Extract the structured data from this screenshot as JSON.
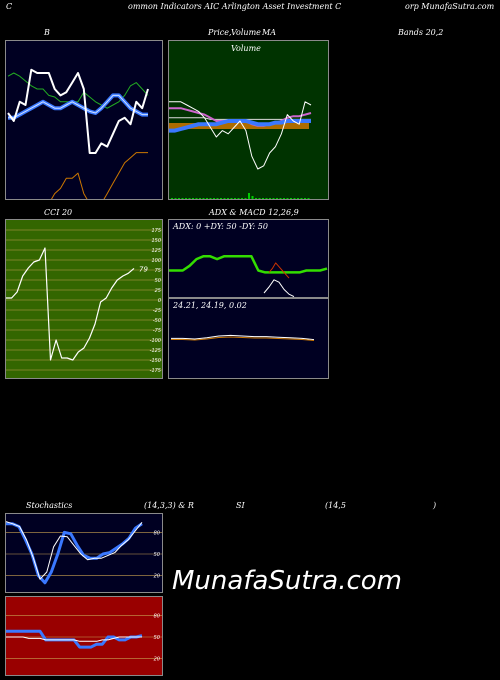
{
  "header": {
    "left_c": "C",
    "middle": "ommon  Indicators AIC Arlington  Asset Investment C",
    "right": "orp MunafaSutra.com"
  },
  "panels": {
    "bollinger": {
      "title": "B",
      "title_right": "Bands 20,2"
    },
    "price": {
      "title_a": "Price,",
      "title_b": "Volume",
      "title_c": "MA",
      "overlay": "Volume"
    },
    "cci": {
      "title": "CCI 20",
      "last_label": "79",
      "ticks": [
        "175",
        "150",
        "125",
        "100",
        "75",
        "50",
        "25",
        "0",
        "-25",
        "-50",
        "-75",
        "-100",
        "-125",
        "-150",
        "-175"
      ]
    },
    "adx": {
      "title": "ADX  & MACD 12,26,9",
      "line1": "ADX: 0   +DY: 50   -DY: 50",
      "macd_line": "24.21,  24.19,  0.02"
    },
    "stoch": {
      "title_a": "Stochastics",
      "title_b": "(14,3,3) & R",
      "title_c": "SI",
      "title_d": "(14,5",
      "title_e": ")",
      "ticks": [
        "80",
        "50",
        "20"
      ],
      "rsi_ticks": [
        "80",
        "50",
        "20"
      ]
    }
  },
  "watermark": "MunafaSutra.com",
  "colors": {
    "bollinger_bg": "#000022",
    "price_bg": "#003300",
    "cci_bg": "#336600",
    "adx_bg": "#000022",
    "stoch_bg": "#000022",
    "rsi_bg": "#990000"
  },
  "chart_data": [
    {
      "type": "line",
      "title": "Bands 20,2",
      "series": [
        {
          "values": [
            0.78,
            0.8,
            0.78,
            0.75,
            0.72,
            0.7,
            0.7,
            0.66,
            0.65,
            0.62,
            0.62,
            0.62,
            0.62,
            0.68,
            0.65,
            0.62,
            0.6,
            0.58,
            0.6,
            0.62,
            0.66,
            0.72,
            0.74,
            0.7,
            0.66
          ]
        },
        {
          "values": [
            0.52,
            0.52,
            0.54,
            0.56,
            0.58,
            0.6,
            0.62,
            0.6,
            0.58,
            0.58,
            0.6,
            0.62,
            0.6,
            0.58,
            0.56,
            0.55,
            0.58,
            0.62,
            0.66,
            0.66,
            0.62,
            0.58,
            0.56,
            0.54,
            0.54
          ]
        },
        {
          "values": [
            0.32,
            0.3,
            0.28,
            0.3,
            0.28,
            0.3,
            0.32,
            0.4,
            0.44,
            0.46,
            0.5,
            0.5,
            0.52,
            0.44,
            0.4,
            0.38,
            0.4,
            0.44,
            0.48,
            0.52,
            0.56,
            0.58,
            0.6,
            0.6,
            0.6
          ]
        },
        {
          "values": [
            0.55,
            0.5,
            0.62,
            0.6,
            0.82,
            0.8,
            0.8,
            0.8,
            0.7,
            0.66,
            0.68,
            0.74,
            0.8,
            0.7,
            0.3,
            0.3,
            0.36,
            0.34,
            0.42,
            0.5,
            0.52,
            0.48,
            0.62,
            0.58,
            0.7
          ]
        }
      ]
    },
    {
      "type": "line",
      "title": "Price, Volume, MA",
      "series": [
        {
          "values": [
            0.62,
            0.62,
            0.62,
            0.6,
            0.58,
            0.56,
            0.52,
            0.46,
            0.4,
            0.44,
            0.42,
            0.46,
            0.5,
            0.44,
            0.28,
            0.2,
            0.22,
            0.3,
            0.34,
            0.42,
            0.54,
            0.5,
            0.48,
            0.62,
            0.6
          ]
        },
        {
          "values": [
            0.58,
            0.58,
            0.58,
            0.57,
            0.56,
            0.55,
            0.54,
            0.52,
            0.5,
            0.5,
            0.5,
            0.5,
            0.5,
            0.5,
            0.48,
            0.47,
            0.47,
            0.48,
            0.49,
            0.5,
            0.52,
            0.53,
            0.53,
            0.54,
            0.55
          ]
        },
        {
          "values": [
            0.52,
            0.52,
            0.52,
            0.52,
            0.52,
            0.52,
            0.52,
            0.51,
            0.51,
            0.51,
            0.51,
            0.51,
            0.51,
            0.51,
            0.51,
            0.51,
            0.51,
            0.51,
            0.51,
            0.51,
            0.51,
            0.51,
            0.51,
            0.51,
            0.51
          ]
        },
        {
          "values": [
            0.44,
            0.44,
            0.45,
            0.46,
            0.47,
            0.48,
            0.48,
            0.48,
            0.48,
            0.49,
            0.5,
            0.5,
            0.5,
            0.5,
            0.49,
            0.48,
            0.48,
            0.48,
            0.49,
            0.49,
            0.5,
            0.5,
            0.5,
            0.5,
            0.5
          ]
        }
      ]
    },
    {
      "type": "line",
      "title": "CCI 20",
      "ylim": [
        -175,
        175
      ],
      "series": [
        {
          "values": [
            5,
            5,
            20,
            60,
            80,
            95,
            100,
            130,
            -150,
            -100,
            -145,
            -145,
            -150,
            -130,
            -120,
            -95,
            -60,
            -5,
            5,
            30,
            50,
            60,
            67,
            79
          ]
        }
      ]
    },
    {
      "type": "line",
      "title": "ADX & MACD 12,26,9",
      "series": [
        {
          "values": [
            30,
            30,
            30,
            35,
            42,
            45,
            45,
            42,
            45,
            45,
            45,
            45,
            45,
            30,
            28,
            28,
            28,
            28,
            28,
            28,
            30,
            30,
            30,
            32
          ]
        },
        {
          "values": [
            24.21,
            24.21,
            24.2,
            24.22,
            24.25,
            24.26,
            24.25,
            24.24,
            24.24,
            24.23,
            24.22,
            24.21,
            24.19
          ]
        }
      ]
    },
    {
      "type": "line",
      "title": "Stochastics (14,3,3)",
      "ylim": [
        0,
        100
      ],
      "series": [
        {
          "values": [
            92,
            92,
            88,
            70,
            50,
            20,
            10,
            25,
            50,
            80,
            78,
            62,
            48,
            44,
            44,
            50,
            52,
            58,
            64,
            72,
            86,
            92
          ]
        },
        {
          "values": [
            95,
            92,
            88,
            70,
            45,
            15,
            25,
            60,
            75,
            74,
            62,
            50,
            42,
            44,
            44,
            48,
            52,
            62,
            70,
            82,
            94
          ]
        }
      ]
    },
    {
      "type": "line",
      "title": "RSI (14,5)",
      "ylim": [
        0,
        100
      ],
      "series": [
        {
          "values": [
            58,
            58,
            58,
            58,
            58,
            58,
            58,
            46,
            46,
            46,
            46,
            46,
            46,
            36,
            36,
            36,
            40,
            40,
            50,
            50,
            46,
            46,
            50,
            50,
            52
          ]
        },
        {
          "values": [
            50,
            50,
            50,
            50,
            48,
            48,
            48,
            46,
            46,
            46,
            46,
            46,
            46,
            44,
            44,
            44,
            44,
            46,
            46,
            48,
            50,
            50,
            50,
            50,
            50
          ]
        }
      ]
    }
  ]
}
